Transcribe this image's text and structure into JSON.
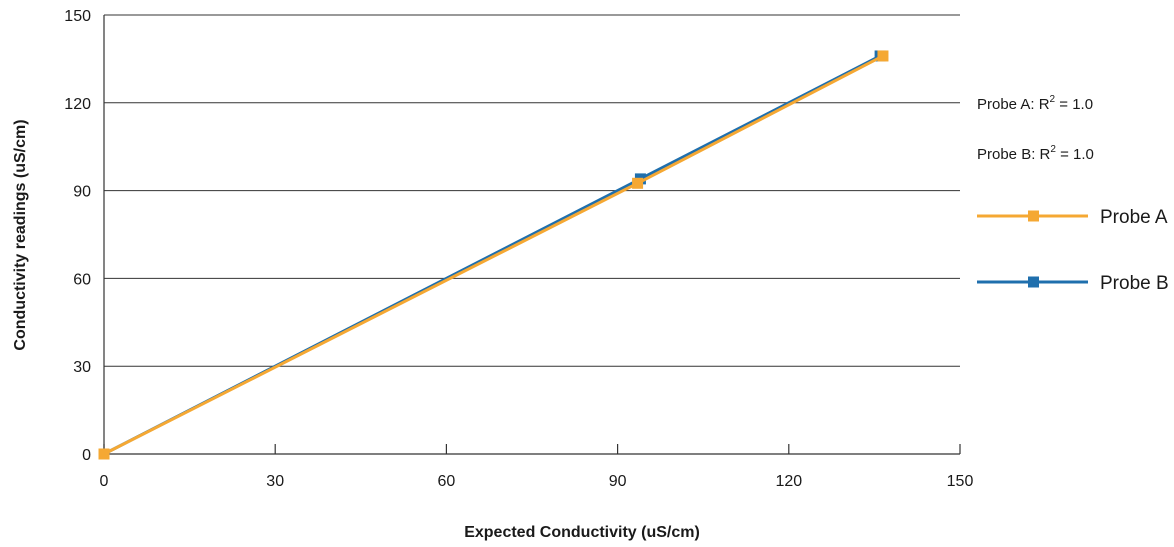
{
  "chart_data": {
    "type": "line",
    "title": "",
    "xlabel": "Expected Conductivity (uS/cm)",
    "ylabel": "Conductivity readings (uS/cm)",
    "xlim": [
      0,
      150
    ],
    "ylim": [
      0,
      150
    ],
    "xticks": [
      0,
      30,
      60,
      90,
      120,
      150
    ],
    "yticks": [
      0,
      30,
      60,
      90,
      120,
      150
    ],
    "grid": "horizontal",
    "legend_position": "right",
    "annotations": [
      {
        "prefix": "Probe A: R",
        "sup": "2",
        "suffix": " = 1.0"
      },
      {
        "prefix": "Probe B: R",
        "sup": "2",
        "suffix": " = 1.0"
      }
    ],
    "series": [
      {
        "name": "Probe A",
        "color": "#f5a833",
        "x": [
          0,
          93.5,
          136.5
        ],
        "y": [
          0,
          92.5,
          136
        ]
      },
      {
        "name": "Probe B",
        "color": "#1f6fad",
        "x": [
          0,
          94,
          136
        ],
        "y": [
          0,
          94,
          136
        ]
      }
    ]
  }
}
